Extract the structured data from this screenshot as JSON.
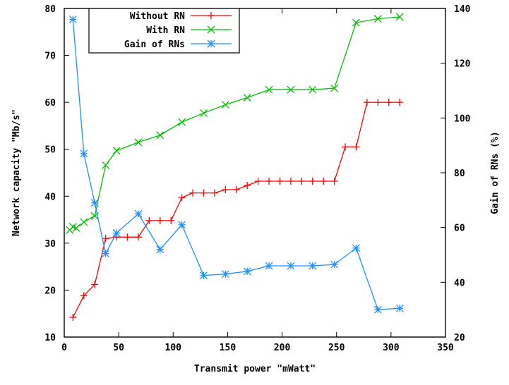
{
  "chart_data": {
    "type": "line",
    "xlabel": "Transmit power \"mWatt\"",
    "ylabel": "Network capacity \"Mb/s\"",
    "y2label": "Gain of RNs (%)",
    "xlim": [
      0,
      350
    ],
    "ylim": [
      10,
      80
    ],
    "y2lim": [
      20,
      140
    ],
    "xticks": [
      0,
      50,
      100,
      150,
      200,
      250,
      300,
      350
    ],
    "yticks": [
      10,
      20,
      30,
      40,
      50,
      60,
      70,
      80
    ],
    "y2ticks": [
      20,
      40,
      60,
      80,
      100,
      120,
      140
    ],
    "grid": false,
    "legend_position": "top-left",
    "series": [
      {
        "name": "Without RN",
        "axis": "left",
        "color": "#ff0000",
        "marker": "plus",
        "x": [
          8,
          18,
          28,
          38,
          48,
          58,
          68,
          78,
          88,
          98,
          108,
          118,
          128,
          138,
          148,
          158,
          168,
          178,
          188,
          198,
          208,
          218,
          228,
          238,
          248,
          258,
          268,
          278,
          288,
          298,
          308
        ],
        "y": [
          14.2,
          18.8,
          21.2,
          31.0,
          31.3,
          31.3,
          31.3,
          34.8,
          34.8,
          34.8,
          39.7,
          40.7,
          40.7,
          40.7,
          41.4,
          41.4,
          42.3,
          43.2,
          43.2,
          43.2,
          43.2,
          43.2,
          43.2,
          43.2,
          43.2,
          50.5,
          50.5,
          60.0,
          60.0,
          60.0,
          60.0
        ]
      },
      {
        "name": "With RN",
        "axis": "left",
        "color": "#00c000",
        "marker": "x",
        "x": [
          5,
          8,
          11,
          18,
          28,
          38,
          48,
          68,
          88,
          108,
          128,
          148,
          168,
          188,
          208,
          228,
          248,
          268,
          288,
          308
        ],
        "y": [
          32.8,
          33.5,
          33.2,
          34.5,
          35.8,
          46.6,
          49.7,
          51.5,
          53.0,
          55.8,
          57.7,
          59.5,
          61.0,
          62.7,
          62.7,
          62.7,
          63.0,
          77.0,
          77.8,
          78.2
        ]
      },
      {
        "name": "Gain of RNs",
        "axis": "right",
        "color": "#1e90ff",
        "marker": "star",
        "x": [
          8,
          18,
          28,
          38,
          48,
          68,
          88,
          108,
          128,
          148,
          168,
          188,
          208,
          228,
          248,
          268,
          288,
          308
        ],
        "y": [
          136.0,
          87.0,
          69.0,
          50.5,
          58.0,
          65.0,
          52.0,
          61.0,
          42.5,
          43.0,
          44.0,
          46.0,
          46.0,
          46.0,
          46.5,
          52.5,
          30.0,
          30.5
        ]
      }
    ]
  }
}
